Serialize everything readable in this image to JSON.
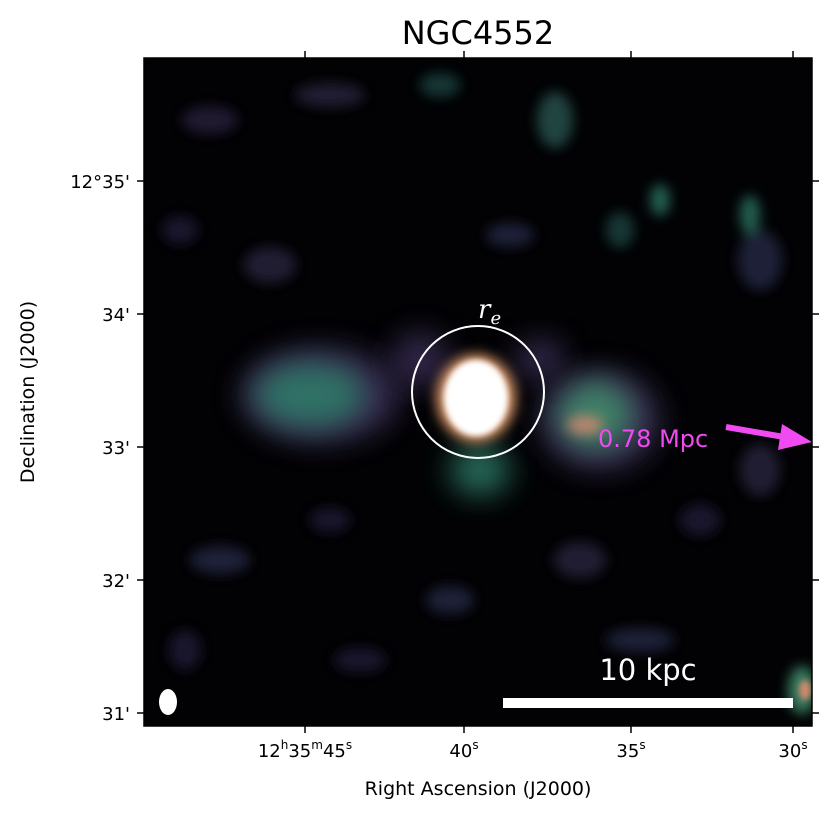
{
  "title": "NGC4552",
  "axes": {
    "xlabel": "Right Ascension (J2000)",
    "ylabel": "Declination (J2000)",
    "x_ticks": [
      {
        "main": "12",
        "sup_h": "h",
        "mid": "35",
        "sup_m": "m",
        "end": "45",
        "sup_s": "s"
      },
      {
        "main": "40",
        "sup_s": "s"
      },
      {
        "main": "35",
        "sup_s": "s"
      },
      {
        "main": "30",
        "sup_s": "s"
      }
    ],
    "y_ticks": [
      "12°35'",
      "34'",
      "33'",
      "32'",
      "31'"
    ]
  },
  "annotations": {
    "radius_label_main": "r",
    "radius_label_sub": "e",
    "distance_label": "0.78 Mpc",
    "distance_color": "#f04bf0",
    "scalebar_label": "10 kpc"
  },
  "colors": {
    "background": "#020204",
    "emission_low": "#3a2f55",
    "emission_mid": "#2f7f6a",
    "emission_high": "#e8a070",
    "core": "#ffffff"
  }
}
